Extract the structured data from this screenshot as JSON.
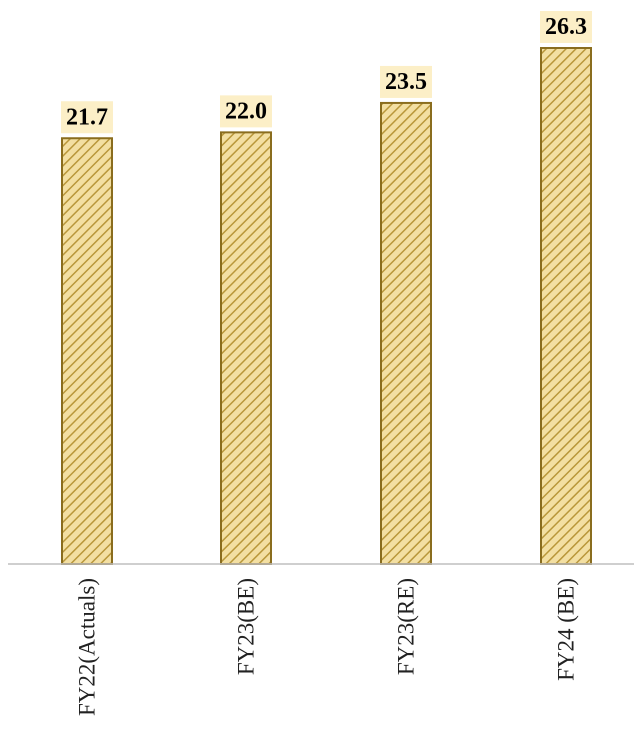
{
  "chart_data": {
    "type": "bar",
    "categories": [
      "FY22(Actuals)",
      "FY23(BE)",
      "FY23(RE)",
      "FY24 (BE)"
    ],
    "values": [
      21.7,
      22.0,
      23.5,
      26.3
    ],
    "data_labels": [
      "21.7",
      "22.0",
      "23.5",
      "26.3"
    ],
    "title": "",
    "xlabel": "",
    "ylabel": "",
    "ylim": [
      0,
      26.3
    ],
    "grid": false,
    "legend": "none",
    "x_tick_rotation": "vertical",
    "colors": {
      "bar_fill": "#F3DFA2",
      "bar_hatch": "#B9973A",
      "bar_stroke": "#8A6D1E",
      "label_background": "#FCEFC7",
      "axis": "#BFBFBF"
    }
  }
}
